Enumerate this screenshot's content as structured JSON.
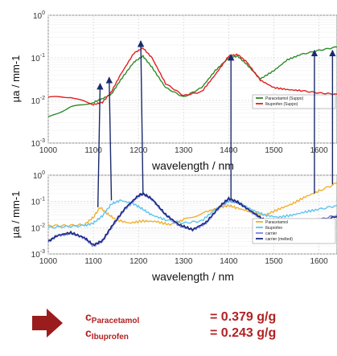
{
  "chart_data": [
    {
      "type": "line",
      "xlabel": "wavelength / nm",
      "ylabel": "µa / mm-1",
      "xlim": [
        1000,
        1640
      ],
      "ylim": [
        0.001,
        1
      ],
      "yscale": "log",
      "grid": true,
      "legend_position": "bottom-right",
      "x_ticks": [
        1000,
        1100,
        1200,
        1300,
        1400,
        1500,
        1600
      ],
      "y_ticks": [
        {
          "exp": "-3",
          "value": 0.001
        },
        {
          "exp": "-2",
          "value": 0.01
        },
        {
          "exp": "-1",
          "value": 0.1
        },
        {
          "exp": "0",
          "value": 1
        }
      ],
      "series": [
        {
          "name": "Paracetamol (Suppo)",
          "color": "#2e8b2e",
          "x": [
            1000,
            1050,
            1100,
            1120,
            1140,
            1160,
            1190,
            1210,
            1230,
            1260,
            1300,
            1340,
            1370,
            1400,
            1420,
            1440,
            1470,
            1500,
            1530,
            1560,
            1600,
            1640
          ],
          "y": [
            0.004,
            0.007,
            0.009,
            0.011,
            0.014,
            0.03,
            0.08,
            0.11,
            0.06,
            0.02,
            0.012,
            0.02,
            0.05,
            0.1,
            0.11,
            0.07,
            0.032,
            0.05,
            0.09,
            0.12,
            0.15,
            0.18
          ]
        },
        {
          "name": "Ibuprofen (Suppo)",
          "color": "#e02020",
          "x": [
            1000,
            1050,
            1100,
            1120,
            1140,
            1160,
            1190,
            1210,
            1230,
            1260,
            1300,
            1340,
            1370,
            1400,
            1420,
            1440,
            1470,
            1500,
            1530,
            1560,
            1600,
            1640
          ],
          "y": [
            0.012,
            0.012,
            0.008,
            0.009,
            0.016,
            0.04,
            0.13,
            0.17,
            0.1,
            0.025,
            0.013,
            0.016,
            0.04,
            0.11,
            0.12,
            0.08,
            0.03,
            0.02,
            0.018,
            0.017,
            0.015,
            0.014
          ]
        }
      ],
      "annotations": {
        "arrow_x": [
          1115,
          1135,
          1205,
          1405,
          1590,
          1630
        ]
      }
    },
    {
      "type": "line",
      "xlabel": "wavelength / nm",
      "ylabel": "µa / mm-1",
      "xlim": [
        1000,
        1640
      ],
      "ylim": [
        0.001,
        1
      ],
      "yscale": "log",
      "grid": true,
      "legend_position": "bottom-right",
      "x_ticks": [
        1000,
        1100,
        1200,
        1300,
        1400,
        1500,
        1600
      ],
      "y_ticks": [
        {
          "exp": "-3",
          "value": 0.001
        },
        {
          "exp": "-2",
          "value": 0.01
        },
        {
          "exp": "-1",
          "value": 0.1
        },
        {
          "exp": "0",
          "value": 1
        }
      ],
      "series": [
        {
          "name": "Paracetamol",
          "color": "#f0b030",
          "x": [
            1000,
            1040,
            1080,
            1100,
            1115,
            1130,
            1150,
            1180,
            1210,
            1240,
            1270,
            1300,
            1350,
            1380,
            1400,
            1420,
            1450,
            1480,
            1510,
            1540,
            1570,
            1600,
            1640
          ],
          "y": [
            0.012,
            0.012,
            0.013,
            0.025,
            0.06,
            0.035,
            0.02,
            0.015,
            0.018,
            0.017,
            0.013,
            0.02,
            0.04,
            0.06,
            0.07,
            0.055,
            0.04,
            0.03,
            0.05,
            0.08,
            0.15,
            0.25,
            0.5
          ]
        },
        {
          "name": "Ibuprofen",
          "color": "#5fc4f0",
          "x": [
            1000,
            1040,
            1080,
            1100,
            1120,
            1140,
            1160,
            1190,
            1210,
            1230,
            1260,
            1300,
            1340,
            1370,
            1400,
            1420,
            1450,
            1480,
            1510,
            1540,
            1570,
            1600,
            1640
          ],
          "y": [
            0.01,
            0.011,
            0.012,
            0.015,
            0.028,
            0.08,
            0.11,
            0.08,
            0.05,
            0.03,
            0.02,
            0.015,
            0.018,
            0.05,
            0.1,
            0.09,
            0.05,
            0.03,
            0.025,
            0.03,
            0.04,
            0.05,
            0.07
          ]
        },
        {
          "name": "carrier",
          "color": "#8080e0",
          "x": [
            1000,
            1020,
            1050,
            1080,
            1100,
            1120,
            1140,
            1170,
            1200,
            1210,
            1230,
            1260,
            1290,
            1320,
            1350,
            1380,
            1400,
            1420,
            1450,
            1480,
            1510,
            1540,
            1570,
            1600,
            1640
          ],
          "y": [
            0.003,
            0.005,
            0.006,
            0.004,
            0.002,
            0.003,
            0.01,
            0.05,
            0.16,
            0.19,
            0.12,
            0.03,
            0.012,
            0.008,
            0.015,
            0.06,
            0.12,
            0.09,
            0.04,
            0.018,
            0.012,
            0.012,
            0.015,
            0.02,
            0.03
          ]
        },
        {
          "name": "carrier (melted)",
          "color": "#1a2a80",
          "x": [
            1000,
            1020,
            1050,
            1080,
            1100,
            1120,
            1140,
            1170,
            1200,
            1210,
            1230,
            1260,
            1290,
            1320,
            1350,
            1380,
            1400,
            1420,
            1450,
            1480,
            1510,
            1540,
            1570,
            1600,
            1640
          ],
          "y": [
            0.003,
            0.005,
            0.0065,
            0.0042,
            0.0022,
            0.0032,
            0.011,
            0.055,
            0.17,
            0.2,
            0.125,
            0.032,
            0.013,
            0.0085,
            0.016,
            0.065,
            0.13,
            0.095,
            0.042,
            0.019,
            0.013,
            0.012,
            0.014,
            0.018,
            0.026
          ]
        }
      ]
    }
  ],
  "results": [
    {
      "symbol": "c",
      "subscript": "Paracetamol",
      "value": "= 0.379 g/g"
    },
    {
      "symbol": "c",
      "subscript": "Ibuprofen",
      "value": "= 0.243 g/g"
    }
  ],
  "colors": {
    "accent": "#b22222",
    "arrow": "#1a2a6c"
  }
}
